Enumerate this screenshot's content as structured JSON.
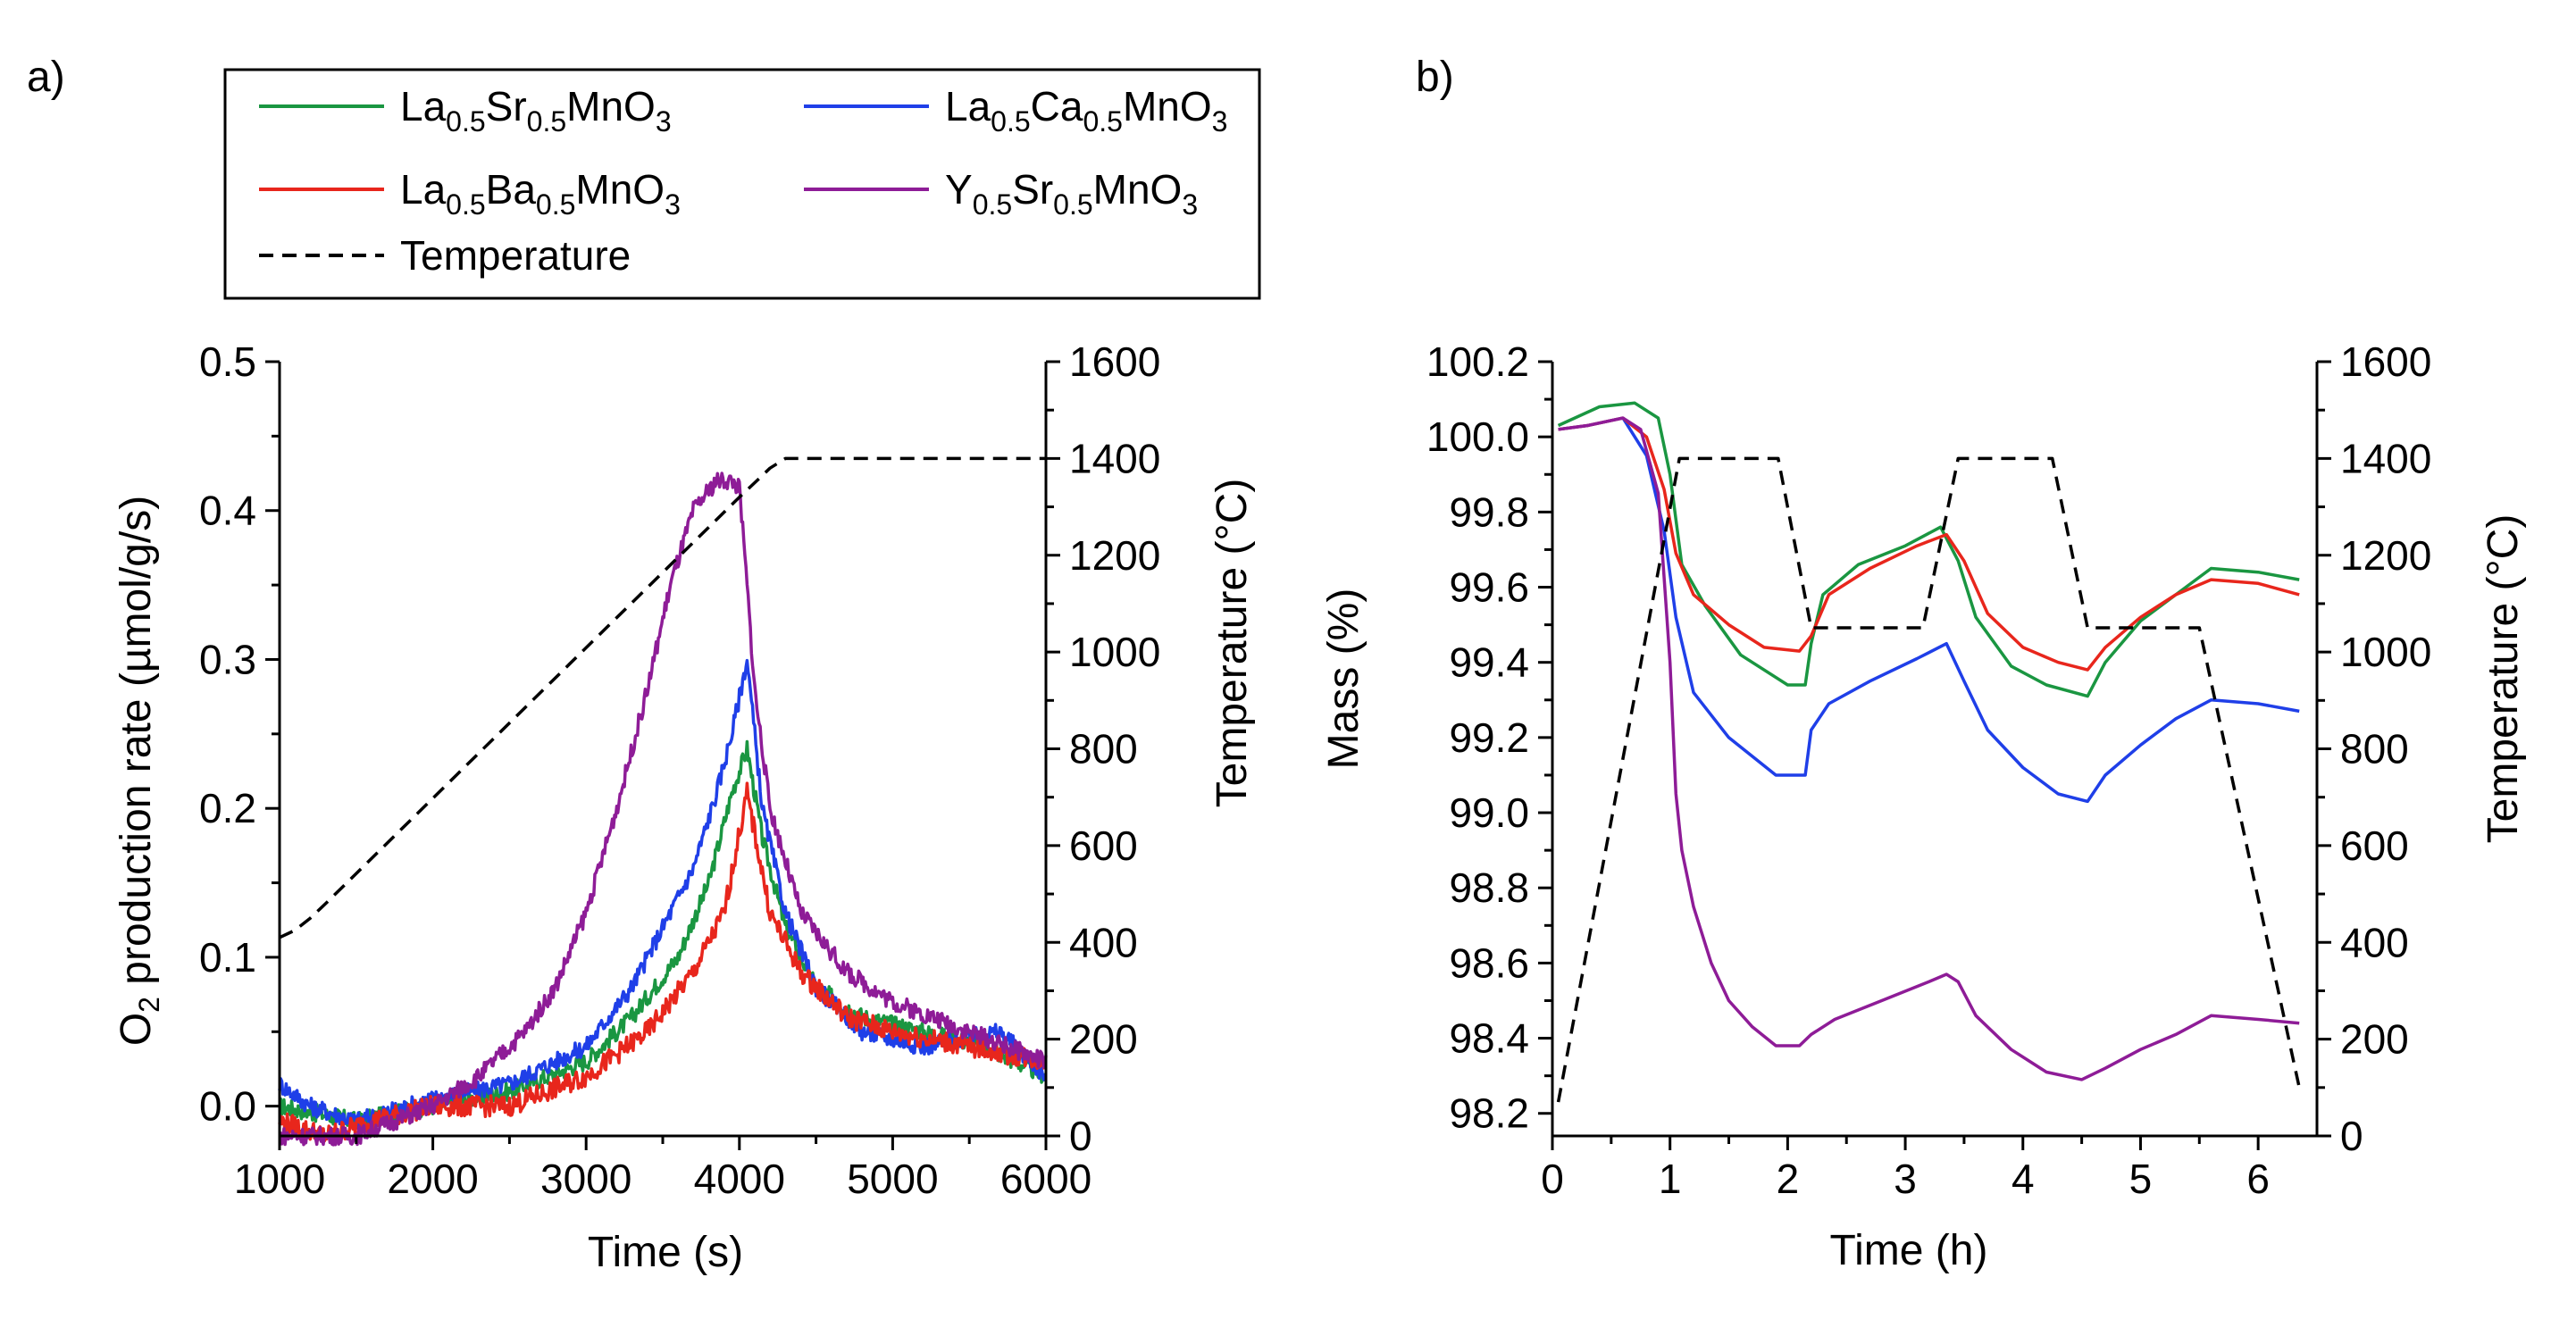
{
  "panel_labels": {
    "a": "a)",
    "b": "b)"
  },
  "legend": {
    "items": [
      {
        "id": "lsm",
        "color": "#1a9641",
        "parts": [
          [
            "La",
            ""
          ],
          [
            "0.5",
            "s"
          ],
          [
            "Sr",
            ""
          ],
          [
            "0.5",
            "s"
          ],
          [
            "MnO",
            ""
          ],
          [
            "3",
            "s"
          ]
        ]
      },
      {
        "id": "lcm",
        "color": "#1f3fe8",
        "parts": [
          [
            "La",
            ""
          ],
          [
            "0.5",
            "s"
          ],
          [
            "Ca",
            ""
          ],
          [
            "0.5",
            "s"
          ],
          [
            "MnO",
            ""
          ],
          [
            "3",
            "s"
          ]
        ]
      },
      {
        "id": "lbm",
        "color": "#e8261c",
        "parts": [
          [
            "La",
            ""
          ],
          [
            "0.5",
            "s"
          ],
          [
            "Ba",
            ""
          ],
          [
            "0.5",
            "s"
          ],
          [
            "MnO",
            ""
          ],
          [
            "3",
            "s"
          ]
        ]
      },
      {
        "id": "ysm",
        "color": "#8e1c97",
        "parts": [
          [
            "Y",
            ""
          ],
          [
            "0.5",
            "s"
          ],
          [
            "Sr",
            ""
          ],
          [
            "0.5",
            "s"
          ],
          [
            "MnO",
            ""
          ],
          [
            "3",
            "s"
          ]
        ]
      },
      {
        "id": "temp",
        "color": "#000000",
        "dashed": true,
        "parts": [
          [
            "Temperature",
            ""
          ]
        ]
      }
    ]
  },
  "chart_data": [
    {
      "panel": "a)",
      "type": "line",
      "xlabel": "Time (s)",
      "ylabel": {
        "main": "O",
        "sub": "2",
        "rest": " production rate (µmol/g/s)"
      },
      "y2label": "Temperature (°C)",
      "xlim": [
        1000,
        6000
      ],
      "ylim": [
        -0.02,
        0.5
      ],
      "y2lim": [
        0,
        1600
      ],
      "xticks": [
        "1000",
        "2000",
        "3000",
        "4000",
        "5000",
        "6000"
      ],
      "yticks": [
        "0.0",
        "0.1",
        "0.2",
        "0.3",
        "0.4",
        "0.5"
      ],
      "y2ticks": [
        "0",
        "200",
        "400",
        "600",
        "800",
        "1000",
        "1200",
        "1400",
        "1600"
      ],
      "series": [
        {
          "name": "La0.5Sr0.5MnO3",
          "color": "#1a9641",
          "noise": 0.006,
          "x": [
            1000,
            1500,
            2000,
            2500,
            3000,
            3300,
            3600,
            3800,
            3950,
            4050,
            4150,
            4300,
            4500,
            4800,
            5200,
            5600,
            6000
          ],
          "y": [
            0.0,
            -0.01,
            0.0,
            0.01,
            0.03,
            0.06,
            0.1,
            0.15,
            0.21,
            0.24,
            0.18,
            0.12,
            0.08,
            0.06,
            0.05,
            0.04,
            0.02
          ]
        },
        {
          "name": "La0.5Ca0.5MnO3",
          "color": "#1f3fe8",
          "noise": 0.006,
          "x": [
            1000,
            1200,
            1500,
            2000,
            2500,
            3000,
            3300,
            3500,
            3700,
            3850,
            3950,
            4050,
            4150,
            4300,
            4500,
            4800,
            5200,
            5700,
            6000
          ],
          "y": [
            0.015,
            0.0,
            -0.01,
            0.005,
            0.015,
            0.04,
            0.08,
            0.12,
            0.16,
            0.21,
            0.25,
            0.3,
            0.2,
            0.13,
            0.08,
            0.05,
            0.04,
            0.05,
            0.02
          ]
        },
        {
          "name": "La0.5Ba0.5MnO3",
          "color": "#e8261c",
          "noise": 0.007,
          "x": [
            1000,
            1300,
            1600,
            2000,
            2500,
            3000,
            3400,
            3700,
            3900,
            4050,
            4200,
            4400,
            4700,
            5000,
            5500,
            6000
          ],
          "y": [
            -0.01,
            -0.02,
            -0.01,
            0.0,
            0.0,
            0.02,
            0.05,
            0.09,
            0.13,
            0.21,
            0.13,
            0.09,
            0.06,
            0.05,
            0.04,
            0.03
          ]
        },
        {
          "name": "Y0.5Sr0.5MnO3",
          "color": "#8e1c97",
          "noise": 0.006,
          "x": [
            1000,
            1500,
            2000,
            2300,
            2600,
            2800,
            3000,
            3200,
            3400,
            3550,
            3700,
            3850,
            3950,
            4000,
            4050,
            4100,
            4200,
            4400,
            4700,
            5000,
            5500,
            6000
          ],
          "y": [
            -0.02,
            -0.02,
            0.0,
            0.02,
            0.05,
            0.08,
            0.13,
            0.2,
            0.28,
            0.35,
            0.4,
            0.42,
            0.42,
            0.415,
            0.35,
            0.28,
            0.2,
            0.13,
            0.09,
            0.07,
            0.05,
            0.03
          ]
        },
        {
          "name": "Temperature",
          "color": "#000000",
          "dashed": true,
          "axis": "y2",
          "x": [
            1000,
            1100,
            1200,
            1300,
            4000,
            4100,
            4200,
            4300,
            6000
          ],
          "y": [
            410,
            425,
            450,
            480,
            1320,
            1350,
            1380,
            1400,
            1400
          ]
        }
      ]
    },
    {
      "panel": "b)",
      "type": "line",
      "xlabel": "Time (h)",
      "ylabel": "Mass (%)",
      "y2label": "Temperature (°C)",
      "xlim": [
        0,
        6.5
      ],
      "ylim": [
        98.14,
        100.2
      ],
      "y2lim": [
        0,
        1600
      ],
      "xticks": [
        "0",
        "1",
        "2",
        "3",
        "4",
        "5",
        "6"
      ],
      "yticks": [
        "98.2",
        "98.4",
        "98.6",
        "98.8",
        "99.0",
        "99.2",
        "99.4",
        "99.6",
        "99.8",
        "100.0",
        "100.2"
      ],
      "y2ticks": [
        "0",
        "200",
        "400",
        "600",
        "800",
        "1000",
        "1200",
        "1400",
        "1600"
      ],
      "series": [
        {
          "name": "La0.5Sr0.5MnO3",
          "color": "#1a9641",
          "x": [
            0.05,
            0.4,
            0.7,
            0.9,
            1.0,
            1.1,
            1.3,
            1.6,
            2.0,
            2.15,
            2.2,
            2.3,
            2.6,
            3.0,
            3.3,
            3.45,
            3.6,
            3.9,
            4.2,
            4.55,
            4.7,
            5.0,
            5.3,
            5.6,
            6.0,
            6.35
          ],
          "y": [
            100.03,
            100.08,
            100.09,
            100.05,
            99.9,
            99.66,
            99.55,
            99.42,
            99.34,
            99.34,
            99.45,
            99.58,
            99.66,
            99.71,
            99.76,
            99.67,
            99.52,
            99.39,
            99.34,
            99.31,
            99.4,
            99.51,
            99.58,
            99.65,
            99.64,
            99.62
          ]
        },
        {
          "name": "La0.5Ca0.5MnO3",
          "color": "#1f3fe8",
          "x": [
            0.05,
            0.3,
            0.6,
            0.8,
            0.95,
            1.05,
            1.2,
            1.5,
            1.9,
            2.15,
            2.2,
            2.35,
            2.7,
            3.1,
            3.35,
            3.5,
            3.7,
            4.0,
            4.3,
            4.55,
            4.7,
            5.0,
            5.3,
            5.6,
            6.0,
            6.35
          ],
          "y": [
            100.02,
            100.03,
            100.05,
            99.95,
            99.75,
            99.52,
            99.32,
            99.2,
            99.1,
            99.1,
            99.22,
            99.29,
            99.35,
            99.41,
            99.45,
            99.35,
            99.22,
            99.12,
            99.05,
            99.03,
            99.1,
            99.18,
            99.25,
            99.3,
            99.29,
            99.27
          ]
        },
        {
          "name": "La0.5Ba0.5MnO3",
          "color": "#e8261c",
          "x": [
            0.05,
            0.3,
            0.6,
            0.8,
            0.95,
            1.05,
            1.2,
            1.5,
            1.8,
            2.1,
            2.2,
            2.35,
            2.7,
            3.1,
            3.35,
            3.5,
            3.7,
            4.0,
            4.3,
            4.55,
            4.7,
            5.0,
            5.3,
            5.6,
            6.0,
            6.35
          ],
          "y": [
            100.02,
            100.03,
            100.05,
            100.0,
            99.86,
            99.69,
            99.58,
            99.5,
            99.44,
            99.43,
            99.47,
            99.58,
            99.65,
            99.71,
            99.74,
            99.67,
            99.53,
            99.44,
            99.4,
            99.38,
            99.44,
            99.52,
            99.58,
            99.62,
            99.61,
            99.58
          ]
        },
        {
          "name": "Y0.5Sr0.5MnO3",
          "color": "#8e1c97",
          "x": [
            0.05,
            0.3,
            0.6,
            0.75,
            0.9,
            1.0,
            1.05,
            1.1,
            1.2,
            1.35,
            1.5,
            1.7,
            1.9,
            2.1,
            2.2,
            2.4,
            2.8,
            3.2,
            3.35,
            3.45,
            3.6,
            3.9,
            4.2,
            4.5,
            4.7,
            5.0,
            5.3,
            5.6,
            6.0,
            6.35
          ],
          "y": [
            100.02,
            100.03,
            100.05,
            100.02,
            99.85,
            99.4,
            99.05,
            98.9,
            98.75,
            98.6,
            98.5,
            98.43,
            98.38,
            98.38,
            98.41,
            98.45,
            98.5,
            98.55,
            98.57,
            98.55,
            98.46,
            98.37,
            98.31,
            98.29,
            98.32,
            98.37,
            98.41,
            98.46,
            98.45,
            98.44
          ]
        },
        {
          "name": "Temperature",
          "color": "#000000",
          "dashed": true,
          "axis": "y2",
          "x": [
            0.05,
            1.08,
            1.08,
            1.92,
            2.2,
            3.15,
            3.45,
            4.25,
            4.55,
            5.5,
            6.35
          ],
          "y": [
            70,
            1400,
            1400,
            1400,
            1050,
            1050,
            1400,
            1400,
            1050,
            1050,
            100
          ]
        }
      ]
    }
  ]
}
